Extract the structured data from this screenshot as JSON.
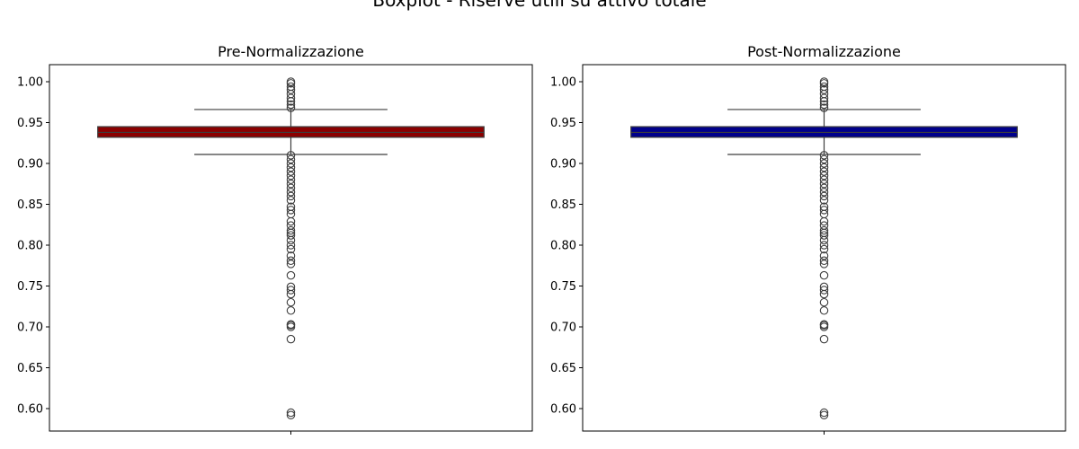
{
  "figure": {
    "title": "Boxplot - Riserve utili su attivo totale"
  },
  "chart_data": [
    {
      "type": "box",
      "title": "Pre-Normalizzazione",
      "xlabel": "",
      "ylabel": "",
      "ylim": [
        0.575,
        1.02
      ],
      "yticks": [
        "0.60",
        "0.65",
        "0.70",
        "0.75",
        "0.80",
        "0.85",
        "0.90",
        "0.95",
        "1.00"
      ],
      "grid": false,
      "color": "#8b0000",
      "box": {
        "whisker_low": 0.911,
        "q1": 0.932,
        "median": 0.938,
        "q3": 0.945,
        "whisker_high": 0.966
      },
      "outliers": [
        0.592,
        0.595,
        0.685,
        0.7,
        0.702,
        0.703,
        0.72,
        0.73,
        0.74,
        0.745,
        0.749,
        0.763,
        0.777,
        0.781,
        0.787,
        0.795,
        0.8,
        0.806,
        0.812,
        0.815,
        0.818,
        0.824,
        0.829,
        0.838,
        0.843,
        0.847,
        0.855,
        0.86,
        0.865,
        0.87,
        0.875,
        0.88,
        0.885,
        0.89,
        0.895,
        0.9,
        0.905,
        0.91,
        0.968,
        0.972,
        0.976,
        0.98,
        0.985,
        0.99,
        0.994,
        0.998,
        1.0
      ]
    },
    {
      "type": "box",
      "title": "Post-Normalizzazione",
      "xlabel": "",
      "ylabel": "",
      "ylim": [
        0.575,
        1.02
      ],
      "yticks": [
        "0.60",
        "0.65",
        "0.70",
        "0.75",
        "0.80",
        "0.85",
        "0.90",
        "0.95",
        "1.00"
      ],
      "grid": false,
      "color": "#00008b",
      "box": {
        "whisker_low": 0.911,
        "q1": 0.932,
        "median": 0.938,
        "q3": 0.945,
        "whisker_high": 0.966
      },
      "outliers": [
        0.592,
        0.595,
        0.685,
        0.7,
        0.702,
        0.703,
        0.72,
        0.73,
        0.74,
        0.745,
        0.749,
        0.763,
        0.777,
        0.781,
        0.787,
        0.795,
        0.8,
        0.806,
        0.812,
        0.815,
        0.818,
        0.824,
        0.829,
        0.838,
        0.843,
        0.847,
        0.855,
        0.86,
        0.865,
        0.87,
        0.875,
        0.88,
        0.885,
        0.89,
        0.895,
        0.9,
        0.905,
        0.91,
        0.968,
        0.972,
        0.976,
        0.98,
        0.985,
        0.99,
        0.994,
        0.998,
        1.0
      ]
    }
  ]
}
